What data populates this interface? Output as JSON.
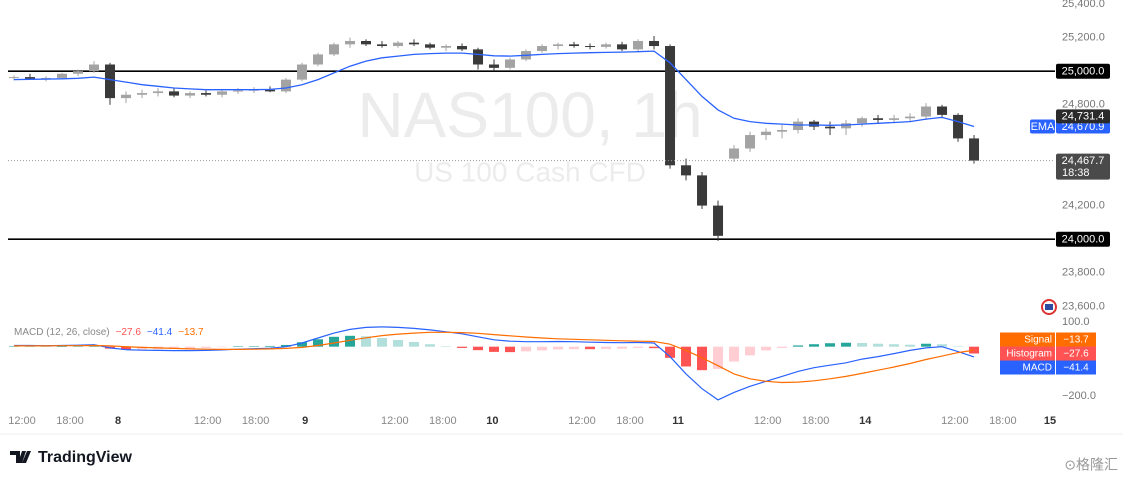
{
  "chart_data": [
    {
      "type": "candlestick",
      "title": "NAS100, 1h",
      "subtitle": "US 100 Cash CFD",
      "xlim": [
        -0.375,
        65.06
      ],
      "ylim": [
        23519,
        25424
      ],
      "yticks": [
        {
          "value": 25400,
          "label": "25,400.0"
        },
        {
          "value": 25200,
          "label": "25,200.0"
        },
        {
          "value": 24800,
          "label": "24,800.0"
        },
        {
          "value": 24200,
          "label": "24,200.0"
        },
        {
          "value": 23800,
          "label": "23,800.0"
        },
        {
          "value": 23600,
          "label": "23,600.0"
        }
      ],
      "up_color": "#a3a3a3",
      "down_color": "#3a3a3a",
      "open": [
        24960,
        24965,
        24955,
        24960,
        24985,
        25000,
        25040,
        24840,
        24860,
        24870,
        24880,
        24855,
        24870,
        24860,
        24880,
        24885,
        24890,
        24880,
        24950,
        25040,
        25100,
        25160,
        25180,
        25160,
        25150,
        25170,
        25160,
        25140,
        25150,
        25130,
        25040,
        25020,
        25070,
        25120,
        25150,
        25160,
        25150,
        25145,
        25160,
        25130,
        25180,
        25150,
        24440,
        24380,
        24200,
        24480,
        24540,
        24620,
        24640,
        24650,
        24700,
        24670,
        24660,
        24690,
        24720,
        24710,
        24720,
        24730,
        24790,
        24740,
        24600
      ],
      "high": [
        24975,
        24985,
        24970,
        24990,
        25010,
        25060,
        25050,
        24880,
        24890,
        24900,
        24900,
        24880,
        24885,
        24890,
        24900,
        24905,
        24910,
        24960,
        25050,
        25110,
        25170,
        25200,
        25190,
        25180,
        25180,
        25190,
        25170,
        25160,
        25165,
        25140,
        25070,
        25080,
        25130,
        25160,
        25170,
        25175,
        25165,
        25170,
        25175,
        25190,
        25210,
        25160,
        24480,
        24400,
        24230,
        24560,
        24640,
        24660,
        24680,
        24720,
        24710,
        24700,
        24710,
        24730,
        24740,
        24740,
        24750,
        24810,
        24800,
        24750,
        24620
      ],
      "low": [
        24945,
        24950,
        24940,
        24955,
        24970,
        24990,
        24800,
        24810,
        24840,
        24850,
        24845,
        24840,
        24850,
        24845,
        24865,
        24870,
        24875,
        24870,
        24940,
        25030,
        25090,
        25140,
        25150,
        25140,
        25140,
        25150,
        25130,
        25120,
        25120,
        25010,
        25000,
        25010,
        25060,
        25110,
        25130,
        25140,
        25130,
        25135,
        25120,
        25120,
        25130,
        24420,
        24350,
        24180,
        23990,
        24460,
        24520,
        24590,
        24600,
        24630,
        24650,
        24620,
        24620,
        24670,
        24690,
        24690,
        24700,
        24710,
        24720,
        24580,
        24450
      ],
      "close": [
        24965,
        24955,
        24960,
        24985,
        25000,
        25040,
        24840,
        24860,
        24870,
        24880,
        24855,
        24870,
        24860,
        24880,
        24885,
        24890,
        24880,
        24950,
        25040,
        25100,
        25160,
        25180,
        25160,
        25150,
        25170,
        25160,
        25140,
        25150,
        25130,
        25040,
        25020,
        25070,
        25120,
        25150,
        25160,
        25150,
        25145,
        25160,
        25130,
        25180,
        25150,
        24440,
        24380,
        24200,
        24020,
        24540,
        24620,
        24640,
        24650,
        24700,
        24670,
        24660,
        24690,
        24720,
        24710,
        24720,
        24730,
        24790,
        24740,
        24600,
        24467.7
      ],
      "ema": {
        "name": "EMA",
        "color": "#2962ff",
        "last_label": "24,670.9",
        "values": [
          24950,
          24952,
          24953,
          24955,
          24958,
          24965,
          24950,
          24935,
          24920,
          24910,
          24900,
          24895,
          24890,
          24890,
          24890,
          24890,
          24892,
          24900,
          24920,
          24950,
          24990,
          25030,
          25060,
          25080,
          25090,
          25100,
          25105,
          25108,
          25108,
          25100,
          25092,
          25090,
          25095,
          25100,
          25105,
          25108,
          25110,
          25112,
          25114,
          25116,
          25120,
          25050,
          24950,
          24850,
          24770,
          24720,
          24700,
          24690,
          24685,
          24680,
          24680,
          24678,
          24680,
          24685,
          24690,
          24695,
          24700,
          24715,
          24725,
          24700,
          24670.9
        ]
      },
      "levels": [
        {
          "value": 25000,
          "label": "25,000.0"
        },
        {
          "value": 24000,
          "label": "24,000.0"
        }
      ],
      "marker": {
        "value": 24731.4,
        "label": "24,731.4"
      },
      "last": {
        "value": 24467.7,
        "label": "24,467.7",
        "countdown": "18:38"
      }
    },
    {
      "type": "macd",
      "title": "MACD (12, 26, close)",
      "xlim": [
        -0.375,
        65.06
      ],
      "ylim": [
        -256,
        116
      ],
      "yticks": [
        {
          "value": 100,
          "label": "100.0"
        },
        {
          "value": -200,
          "label": "−200.0"
        }
      ],
      "xticks": [
        {
          "value": 0.5,
          "label": "12:00"
        },
        {
          "value": 3.5,
          "label": "18:00"
        },
        {
          "value": 6.5,
          "label": "8"
        },
        {
          "value": 12.1,
          "label": "12:00"
        },
        {
          "value": 15.1,
          "label": "18:00"
        },
        {
          "value": 18.2,
          "label": "9"
        },
        {
          "value": 23.8,
          "label": "12:00"
        },
        {
          "value": 26.8,
          "label": "18:00"
        },
        {
          "value": 29.9,
          "label": "10"
        },
        {
          "value": 35.5,
          "label": "12:00"
        },
        {
          "value": 38.5,
          "label": "18:00"
        },
        {
          "value": 41.5,
          "label": "11"
        },
        {
          "value": 47.1,
          "label": "12:00"
        },
        {
          "value": 50.1,
          "label": "18:00"
        },
        {
          "value": 53.2,
          "label": "14"
        },
        {
          "value": 58.8,
          "label": "12:00"
        },
        {
          "value": 61.8,
          "label": "18:00"
        },
        {
          "value": 64.75,
          "label": "15"
        }
      ],
      "bar_colors": {
        "up_rising": "#26a69a",
        "up_falling": "#b2dfdb",
        "down_falling": "#ff5252",
        "down_rising": "#ffcdd2"
      },
      "series": [
        {
          "name": "Histogram",
          "kind": "bar",
          "color": "#ff5252",
          "last_label": "−27.6",
          "values": [
            2,
            2,
            1,
            1,
            2,
            3,
            -8,
            -12,
            -11,
            -10,
            -9,
            -7,
            -5,
            -2,
            1,
            2,
            3,
            7,
            18,
            30,
            40,
            44,
            42,
            35,
            27,
            19,
            10,
            2,
            -5,
            -14,
            -21,
            -22,
            -19,
            -15,
            -11,
            -10,
            -10,
            -9,
            -8,
            -5,
            -6,
            -45,
            -80,
            -95,
            -90,
            -60,
            -35,
            -15,
            -5,
            5,
            10,
            14,
            16,
            15,
            12,
            10,
            8,
            12,
            10,
            2,
            -27.6
          ]
        },
        {
          "name": "MACD",
          "kind": "line",
          "color": "#2962ff",
          "last_label": "−41.4",
          "values": [
            5,
            5,
            4,
            5,
            6,
            8,
            -5,
            -12,
            -14,
            -15,
            -16,
            -16,
            -15,
            -13,
            -10,
            -8,
            -6,
            0,
            15,
            35,
            55,
            70,
            78,
            80,
            78,
            74,
            68,
            60,
            52,
            40,
            28,
            22,
            20,
            20,
            21,
            20,
            18,
            17,
            16,
            17,
            15,
            -40,
            -110,
            -170,
            -215,
            -185,
            -160,
            -140,
            -120,
            -100,
            -85,
            -75,
            -65,
            -50,
            -40,
            -28,
            -15,
            -5,
            0,
            -20,
            -41.4
          ]
        },
        {
          "name": "Signal",
          "kind": "line",
          "color": "#ff6d00",
          "last_label": "−13.7",
          "values": [
            3,
            3,
            3,
            4,
            4,
            5,
            3,
            0,
            -3,
            -5,
            -7,
            -9,
            -10,
            -11,
            -11,
            -10,
            -9,
            -7,
            -3,
            5,
            15,
            26,
            36,
            45,
            51,
            55,
            58,
            58,
            57,
            54,
            49,
            44,
            39,
            35,
            32,
            30,
            28,
            26,
            24,
            22,
            21,
            10,
            -15,
            -45,
            -77,
            -110,
            -130,
            -140,
            -145,
            -143,
            -138,
            -130,
            -120,
            -108,
            -95,
            -82,
            -68,
            -52,
            -38,
            -24,
            -13.7
          ]
        }
      ]
    }
  ],
  "brand": "TradingView",
  "watermark": "⊙格隆汇"
}
